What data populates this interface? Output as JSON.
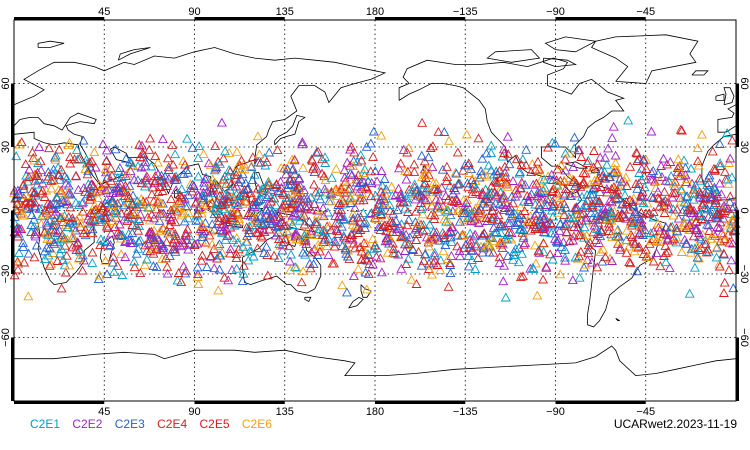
{
  "chart_data": {
    "type": "scatter",
    "projection": "cylindrical-equidistant",
    "center_longitude": 180,
    "lon_range": [
      0,
      360
    ],
    "lat_range": [
      -90,
      90
    ],
    "grid": true,
    "marker": "triangle-open",
    "top_tick_labels": [
      "45",
      "90",
      "135",
      "180",
      "−135",
      "−90",
      "−45"
    ],
    "bottom_tick_labels": [
      "45",
      "90",
      "135",
      "180",
      "−135",
      "−90",
      "−45"
    ],
    "top_tick_lons": [
      45,
      90,
      135,
      180,
      225,
      270,
      315
    ],
    "left_tick_labels": [
      "60",
      "30",
      "0",
      "−30",
      "−60"
    ],
    "right_tick_labels": [
      "60",
      "30",
      "0",
      "−30",
      "−60"
    ],
    "lat_ticks": [
      60,
      30,
      0,
      -30,
      -60
    ],
    "series": [
      {
        "name": "C2E1",
        "color": "#00a0c8"
      },
      {
        "name": "C2E2",
        "color": "#a020c8"
      },
      {
        "name": "C2E3",
        "color": "#2060d0"
      },
      {
        "name": "C2E4",
        "color": "#d02020"
      },
      {
        "name": "C2E5",
        "color": "#e01818"
      },
      {
        "name": "C2E6",
        "color": "#f0a010"
      }
    ],
    "observation_lat_range": [
      -45,
      45
    ],
    "points_per_series": 420
  },
  "footer": {
    "label": "UCARwet2.2023-11-19"
  }
}
